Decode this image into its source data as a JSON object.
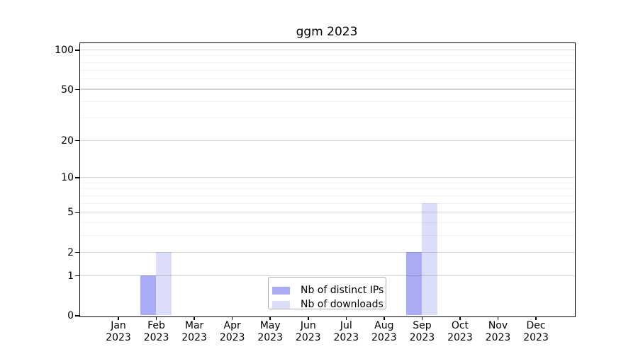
{
  "title": "ggm 2023",
  "chart_data": {
    "type": "bar",
    "title": "ggm 2023",
    "year": "2023",
    "categories": [
      "Jan",
      "Feb",
      "Mar",
      "Apr",
      "May",
      "Jun",
      "Jul",
      "Aug",
      "Sep",
      "Oct",
      "Nov",
      "Dec"
    ],
    "series": [
      {
        "name": "Nb of distinct IPs",
        "color": "#a9abf5",
        "values": [
          0,
          1,
          0,
          0,
          0,
          0,
          0,
          0,
          2,
          0,
          0,
          0
        ]
      },
      {
        "name": "Nb of downloads",
        "color": "#dcdef9",
        "values": [
          0,
          2,
          0,
          0,
          0,
          0,
          0,
          0,
          6,
          0,
          0,
          0
        ]
      }
    ],
    "y_axis": {
      "scale": "log1p",
      "tick_values": [
        0,
        1,
        2,
        5,
        10,
        20,
        50,
        100
      ],
      "minor_gridline_values": [
        3,
        4,
        6,
        7,
        8,
        9,
        30,
        40,
        60,
        70,
        80,
        90
      ],
      "max": 100
    },
    "x_axis": {
      "label_format": "month-over-year"
    },
    "grid": true,
    "legend_position": "bottom-center"
  }
}
